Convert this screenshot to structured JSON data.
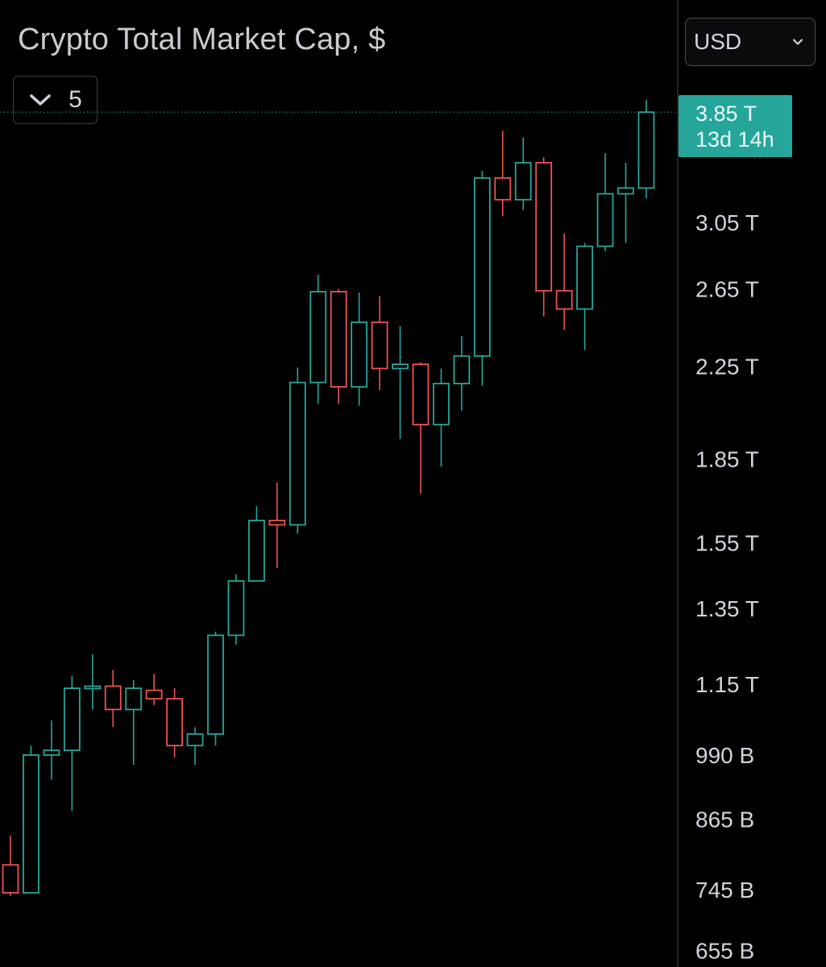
{
  "header": {
    "title": "Crypto Total Market Cap, $",
    "collapsed_indicators_count": "5",
    "currency_selected": "USD"
  },
  "price_tag": {
    "price": "3.85 T",
    "countdown": "13d 14h"
  },
  "colors": {
    "background": "#000000",
    "up": "#26a69a",
    "down": "#ef5350",
    "axis_text": "#d1d4dc",
    "price_tag_bg": "#26a69a"
  },
  "icons": {
    "collapse": "chevron-down-icon",
    "currency_dropdown": "chevron-down-icon"
  },
  "chart_data": {
    "type": "candlestick",
    "title": "Crypto Total Market Cap, $",
    "y_scale": "log",
    "y_unit": "USD",
    "y_tick_labels": [
      "3.85 T",
      "3.05 T",
      "2.65 T",
      "2.25 T",
      "1.85 T",
      "1.55 T",
      "1.35 T",
      "1.15 T",
      "990 B",
      "865 B",
      "745 B",
      "655 B"
    ],
    "y_tick_values": [
      3.85,
      3.05,
      2.65,
      2.25,
      1.85,
      1.55,
      1.35,
      1.15,
      0.99,
      0.865,
      0.745,
      0.655
    ],
    "last_price": 3.85,
    "candles": [
      {
        "open": 0.785,
        "high": 0.835,
        "low": 0.735,
        "close": 0.74
      },
      {
        "open": 0.74,
        "high": 1.01,
        "low": 0.74,
        "close": 0.99
      },
      {
        "open": 0.99,
        "high": 1.065,
        "low": 0.94,
        "close": 1.0
      },
      {
        "open": 1.0,
        "high": 1.17,
        "low": 0.88,
        "close": 1.14
      },
      {
        "open": 1.14,
        "high": 1.225,
        "low": 1.09,
        "close": 1.145
      },
      {
        "open": 1.145,
        "high": 1.185,
        "low": 1.05,
        "close": 1.09
      },
      {
        "open": 1.09,
        "high": 1.16,
        "low": 0.97,
        "close": 1.14
      },
      {
        "open": 1.135,
        "high": 1.175,
        "low": 1.1,
        "close": 1.115
      },
      {
        "open": 1.115,
        "high": 1.14,
        "low": 0.985,
        "close": 1.01
      },
      {
        "open": 1.01,
        "high": 1.05,
        "low": 0.97,
        "close": 1.035
      },
      {
        "open": 1.035,
        "high": 1.285,
        "low": 1.01,
        "close": 1.275
      },
      {
        "open": 1.275,
        "high": 1.45,
        "low": 1.25,
        "close": 1.43
      },
      {
        "open": 1.43,
        "high": 1.675,
        "low": 1.43,
        "close": 1.625
      },
      {
        "open": 1.625,
        "high": 1.76,
        "low": 1.47,
        "close": 1.61
      },
      {
        "open": 1.61,
        "high": 2.245,
        "low": 1.58,
        "close": 2.175
      },
      {
        "open": 2.175,
        "high": 2.73,
        "low": 2.08,
        "close": 2.635
      },
      {
        "open": 2.635,
        "high": 2.65,
        "low": 2.08,
        "close": 2.155
      },
      {
        "open": 2.155,
        "high": 2.63,
        "low": 2.07,
        "close": 2.47
      },
      {
        "open": 2.47,
        "high": 2.61,
        "low": 2.14,
        "close": 2.24
      },
      {
        "open": 2.24,
        "high": 2.45,
        "low": 1.93,
        "close": 2.26
      },
      {
        "open": 2.26,
        "high": 2.27,
        "low": 1.72,
        "close": 1.99
      },
      {
        "open": 1.99,
        "high": 2.24,
        "low": 1.82,
        "close": 2.17
      },
      {
        "open": 2.17,
        "high": 2.4,
        "low": 2.05,
        "close": 2.3
      },
      {
        "open": 2.3,
        "high": 3.4,
        "low": 2.16,
        "close": 3.35
      },
      {
        "open": 3.35,
        "high": 3.7,
        "low": 3.09,
        "close": 3.2
      },
      {
        "open": 3.2,
        "high": 3.65,
        "low": 3.13,
        "close": 3.46
      },
      {
        "open": 3.46,
        "high": 3.5,
        "low": 2.5,
        "close": 2.64
      },
      {
        "open": 2.64,
        "high": 2.98,
        "low": 2.43,
        "close": 2.54
      },
      {
        "open": 2.54,
        "high": 2.92,
        "low": 2.33,
        "close": 2.9
      },
      {
        "open": 2.9,
        "high": 3.53,
        "low": 2.87,
        "close": 3.24
      },
      {
        "open": 3.24,
        "high": 3.46,
        "low": 2.92,
        "close": 3.28
      },
      {
        "open": 3.28,
        "high": 3.95,
        "low": 3.21,
        "close": 3.85
      }
    ]
  }
}
